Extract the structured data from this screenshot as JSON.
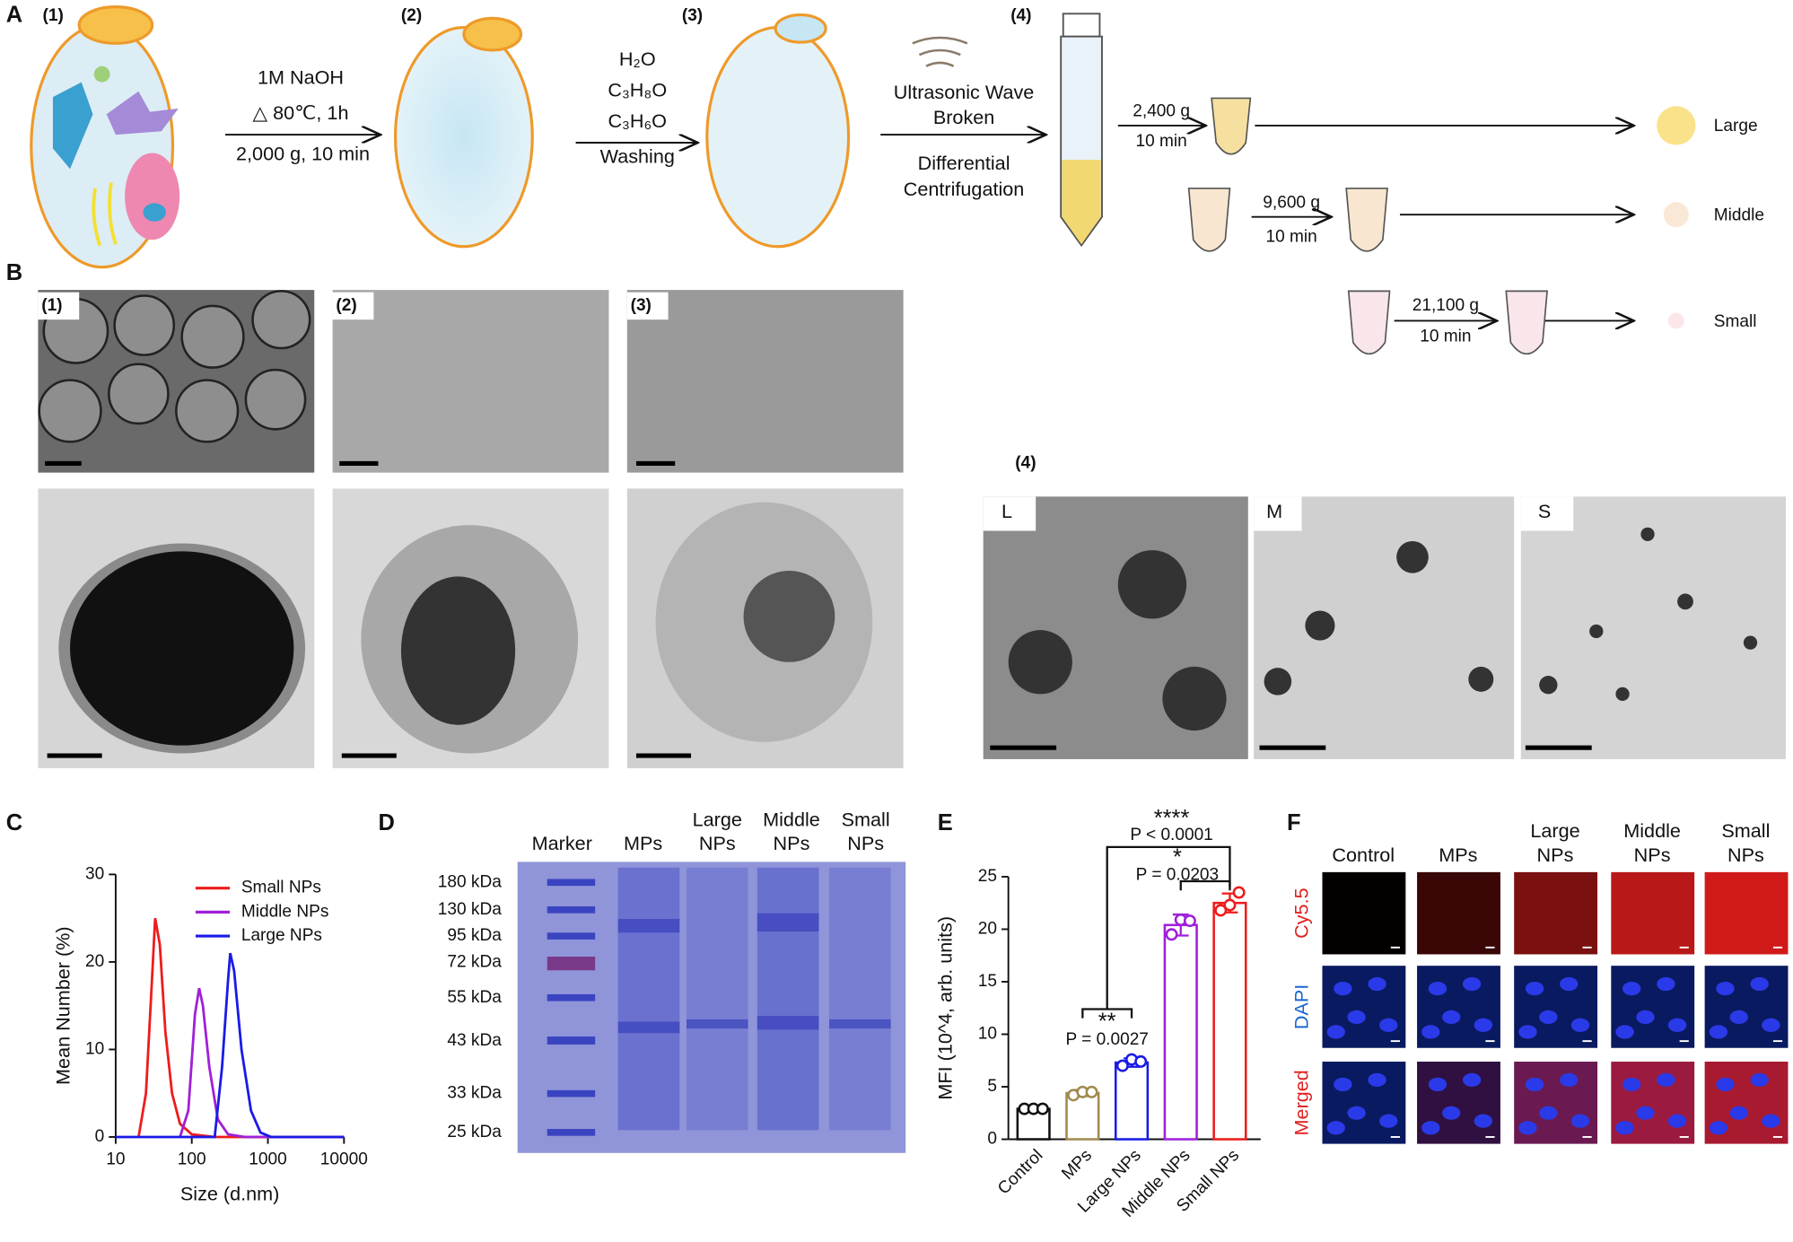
{
  "figure": {
    "panel_labels": [
      "A",
      "B",
      "C",
      "D",
      "E",
      "F"
    ],
    "a": {
      "steps": [
        "(1)",
        "(2)",
        "(3)",
        "(4)"
      ],
      "step1": [
        "1M NaOH",
        "△ 80℃, 1h",
        "2,000 g, 10 min"
      ],
      "step2": [
        "H₂O",
        "C₃H₈O",
        "C₃H₆O",
        "Washing"
      ],
      "step3": [
        "Ultrasonic Wave",
        "Broken",
        "Differential",
        "Centrifugation"
      ],
      "spins": [
        {
          "force": "2,400 g",
          "time": "10 min",
          "fraction": "Large"
        },
        {
          "force": "9,600 g",
          "time": "10 min",
          "fraction": "Middle"
        },
        {
          "force": "21,100 g",
          "time": "10 min",
          "fraction": "Small"
        }
      ]
    },
    "b": {
      "labels": [
        "(1)",
        "(2)",
        "(3)",
        "(4)"
      ],
      "tem": [
        "L",
        "M",
        "S"
      ]
    },
    "d": {
      "lanes": [
        [
          "Marker"
        ],
        [
          "MPs"
        ],
        [
          "Large",
          "NPs"
        ],
        [
          "Middle",
          "NPs"
        ],
        [
          "Small",
          "NPs"
        ]
      ],
      "markers": [
        "180 kDa",
        "130 kDa",
        "95 kDa",
        "72 kDa",
        "55 kDa",
        "43 kDa",
        "33 kDa",
        "25 kDa"
      ]
    },
    "f": {
      "columns": [
        [
          "Control"
        ],
        [
          "MPs"
        ],
        [
          "Large",
          "NPs"
        ],
        [
          "Middle",
          "NPs"
        ],
        [
          "Small",
          "NPs"
        ]
      ],
      "rows": [
        "Cy5.5",
        "DAPI",
        "Merged"
      ]
    }
  },
  "chart_data": [
    {
      "type": "line",
      "x_label": "Size (d.nm)",
      "y_label": "Mean Number (%)",
      "log_x": true,
      "xlim": [
        10,
        10000
      ],
      "xticks": [
        10,
        100,
        1000,
        10000
      ],
      "ylim": [
        0,
        30
      ],
      "yticks": [
        0,
        10,
        20,
        30
      ],
      "legend": "upper right",
      "series": [
        {
          "name": "Small NPs",
          "color": "#ee1c1c",
          "x": [
            20,
            25,
            30,
            33,
            38,
            45,
            55,
            70,
            100,
            200,
            10000
          ],
          "values": [
            0,
            5,
            18,
            25,
            22,
            12,
            5,
            1.5,
            0.3,
            0,
            0
          ]
        },
        {
          "name": "Middle NPs",
          "color": "#a020d8",
          "x": [
            70,
            90,
            110,
            125,
            140,
            170,
            220,
            300,
            500,
            10000
          ],
          "values": [
            0,
            3,
            14,
            17,
            15,
            8,
            2,
            0.3,
            0,
            0
          ]
        },
        {
          "name": "Large NPs",
          "color": "#1a1ae6",
          "x": [
            10,
            200,
            250,
            300,
            320,
            360,
            450,
            600,
            800,
            1100,
            10000
          ],
          "values": [
            0,
            0,
            8,
            18,
            21,
            19,
            10,
            3,
            0.5,
            0,
            0
          ]
        }
      ]
    },
    {
      "type": "bar",
      "y_label": "MFI (10^4, arb. units)",
      "categories": [
        "Control",
        "MPs",
        "Large NPs",
        "Middle NPs",
        "Small NPs"
      ],
      "values": [
        2.9,
        4.4,
        7.3,
        20.4,
        22.5
      ],
      "errors": [
        0.2,
        0.3,
        0.4,
        1.0,
        0.9
      ],
      "points": [
        [
          2.9,
          2.9,
          2.9
        ],
        [
          4.2,
          4.5,
          4.5
        ],
        [
          7.0,
          7.6,
          7.4
        ],
        [
          19.5,
          20.9,
          20.8
        ],
        [
          21.8,
          22.3,
          23.5
        ]
      ],
      "colors": [
        "#111111",
        "#a08a50",
        "#1a1ae6",
        "#a020d8",
        "#ee1c1c"
      ],
      "ylim": [
        0,
        25
      ],
      "yticks": [
        0,
        5,
        10,
        15,
        20,
        25
      ],
      "annotations": [
        {
          "stars": "**",
          "text": "P = 0.0027"
        },
        {
          "stars": "****",
          "text": "P < 0.0001"
        },
        {
          "stars": "*",
          "text": "P = 0.0203"
        }
      ]
    }
  ]
}
